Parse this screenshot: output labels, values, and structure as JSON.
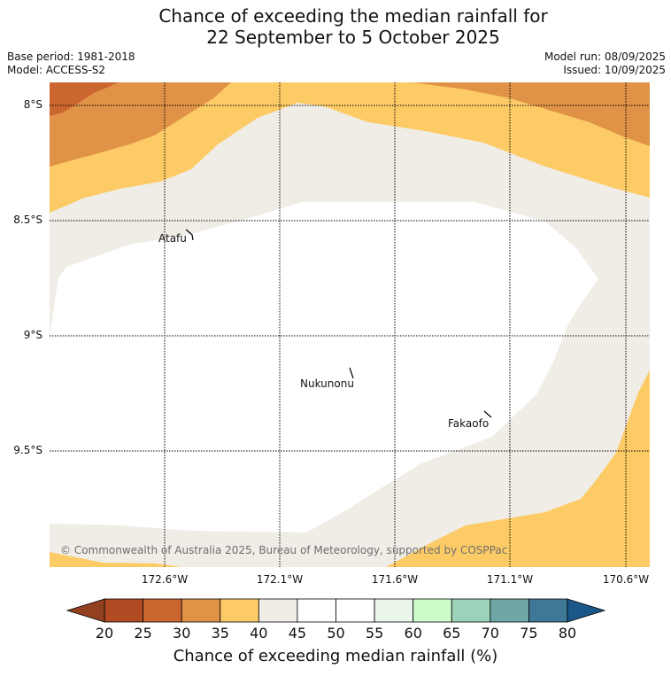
{
  "title": {
    "line1": "Chance of exceeding the median rainfall for",
    "line2": "22 September to 5 October 2025"
  },
  "meta": {
    "base_period": "Base period: 1981-2018",
    "model": "Model: ACCESS-S2",
    "model_run": "Model run: 08/09/2025",
    "issued": "Issued: 10/09/2025"
  },
  "map": {
    "lat_labels": [
      "8°S",
      "8.5°S",
      "9°S",
      "9.5°S"
    ],
    "lon_labels": [
      "172.6°W",
      "172.1°W",
      "171.6°W",
      "171.1°W",
      "170.6°W"
    ],
    "places": [
      "Atafu",
      "Nukunonu",
      "Fakaofo"
    ],
    "copyright": "© Commonwealth of Australia 2025, Bureau of Meteorology, supported by COSPPac"
  },
  "colorbar": {
    "ticks": [
      "20",
      "25",
      "30",
      "35",
      "40",
      "45",
      "50",
      "55",
      "60",
      "65",
      "70",
      "75",
      "80"
    ],
    "colors": [
      "#b24b24",
      "#cc6631",
      "#e09347",
      "#fdcb66",
      "#f0ece6",
      "#ffffff",
      "#ffffff",
      "#e9f6e9",
      "#cbfcc9",
      "#9dd2ba",
      "#6fa6a6",
      "#3f7896"
    ],
    "under_color": "#93401f",
    "over_color": "#1c578a",
    "label": "Chance of exceeding median rainfall (%)"
  }
}
